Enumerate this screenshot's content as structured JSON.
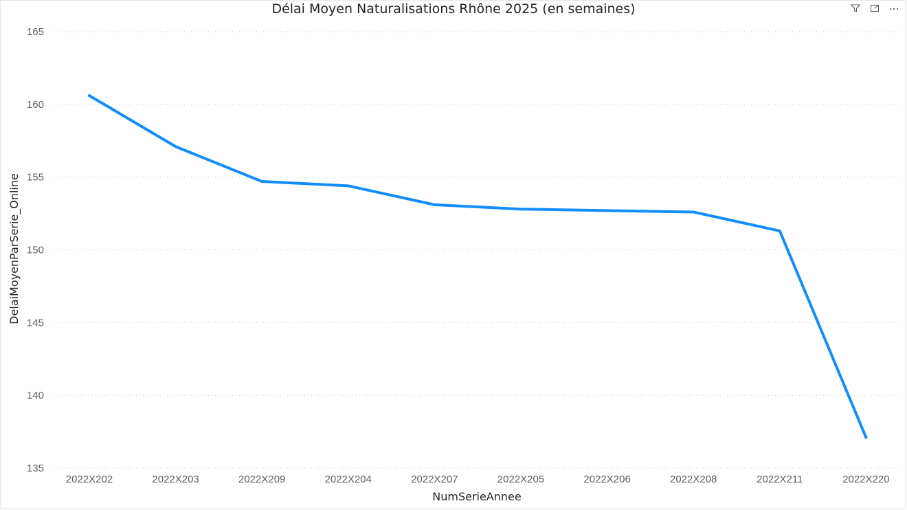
{
  "chart_data": {
    "type": "line",
    "title": "Délai Moyen Naturalisations Rhône 2025 (en semaines)",
    "xlabel": "NumSerieAnnee",
    "ylabel": "DelaiMoyenParSerie_Online",
    "categories": [
      "2022X202",
      "2022X203",
      "2022X209",
      "2022X204",
      "2022X207",
      "2022X205",
      "2022X206",
      "2022X208",
      "2022X211",
      "2022X220"
    ],
    "series": [
      {
        "values": [
          160.6,
          157.1,
          154.7,
          154.4,
          153.1,
          152.8,
          152.7,
          152.6,
          151.3,
          137.1
        ]
      }
    ],
    "ylim": [
      135,
      165
    ],
    "yticks": [
      "135",
      "140",
      "145",
      "150",
      "155",
      "160",
      "165"
    ],
    "grid": true,
    "line_color": "#118DFF"
  },
  "toolbar": {
    "icons": [
      "filter-icon",
      "focus-mode-icon",
      "more-options-icon"
    ]
  }
}
